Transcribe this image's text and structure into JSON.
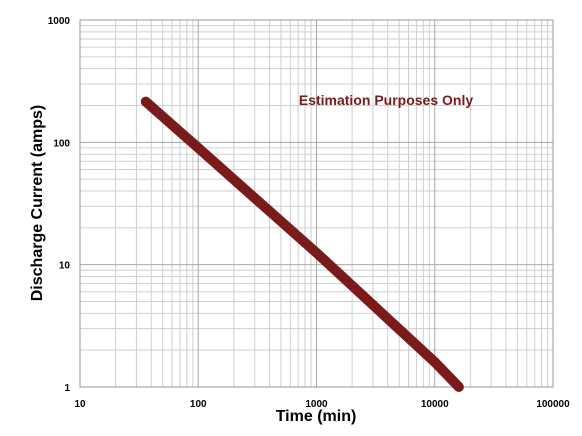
{
  "chart_data": {
    "type": "line",
    "title": "",
    "xlabel": "Time (min)",
    "ylabel": "Discharge Current (amps)",
    "x_scale": "log",
    "y_scale": "log",
    "xlim": [
      10,
      100000
    ],
    "ylim": [
      1,
      1000
    ],
    "x_ticks": [
      "10",
      "100",
      "1000",
      "10000",
      "100000"
    ],
    "y_ticks": [
      "1",
      "10",
      "100",
      "1000"
    ],
    "grid": true,
    "annotation": "Estimation Purposes Only",
    "series": [
      {
        "x": [
          36,
          100,
          1000,
          10000,
          16000
        ],
        "y": [
          215,
          90,
          12.5,
          1.6,
          1.0
        ],
        "color": "#7a1a1a"
      }
    ]
  }
}
